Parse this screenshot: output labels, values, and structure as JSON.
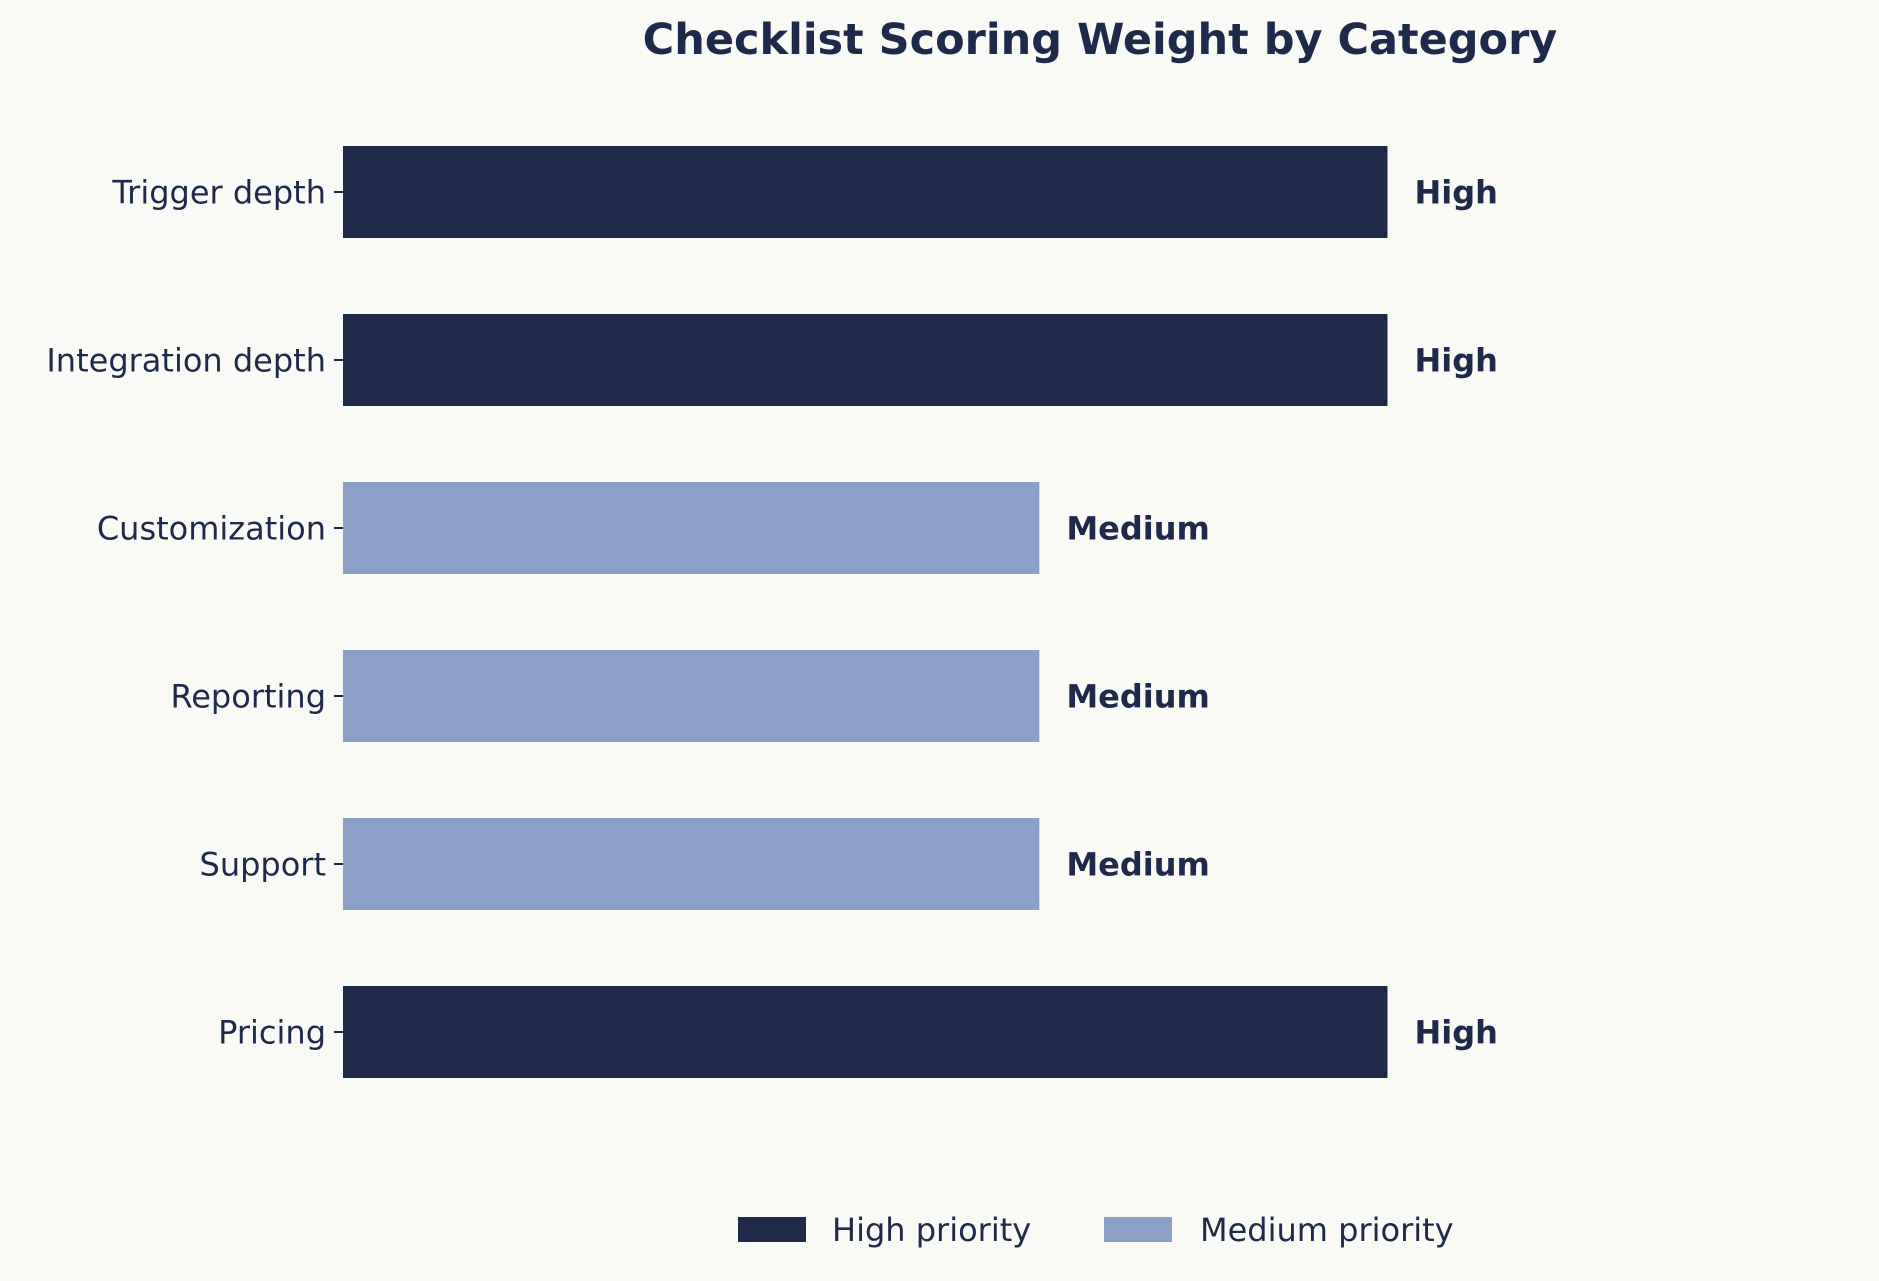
{
  "chart_data": {
    "type": "bar",
    "orientation": "horizontal",
    "title": "Checklist Scoring Weight by Category",
    "xlabel": "",
    "ylabel": "",
    "categories": [
      "Trigger depth",
      "Integration depth",
      "Customization",
      "Reporting",
      "Support",
      "Pricing"
    ],
    "values": [
      3,
      3,
      2,
      2,
      2,
      3
    ],
    "value_labels": [
      "High",
      "High",
      "Medium",
      "Medium",
      "Medium",
      "High"
    ],
    "priorities": [
      "high",
      "high",
      "medium",
      "medium",
      "medium",
      "high"
    ],
    "xlim": [
      0,
      4.36
    ],
    "grid": false,
    "x_axis_visible": false,
    "legend": {
      "placement": "bottom-center",
      "entries": [
        {
          "key": "high",
          "label": "High priority",
          "color": "#1f2a4a"
        },
        {
          "key": "medium",
          "label": "Medium priority",
          "color": "#8c9fc5"
        }
      ]
    }
  },
  "colors": {
    "background": "#f9f9f6",
    "text": "#1f2a4a",
    "high": "#1f2a4a",
    "medium": "#8c9fc5"
  }
}
